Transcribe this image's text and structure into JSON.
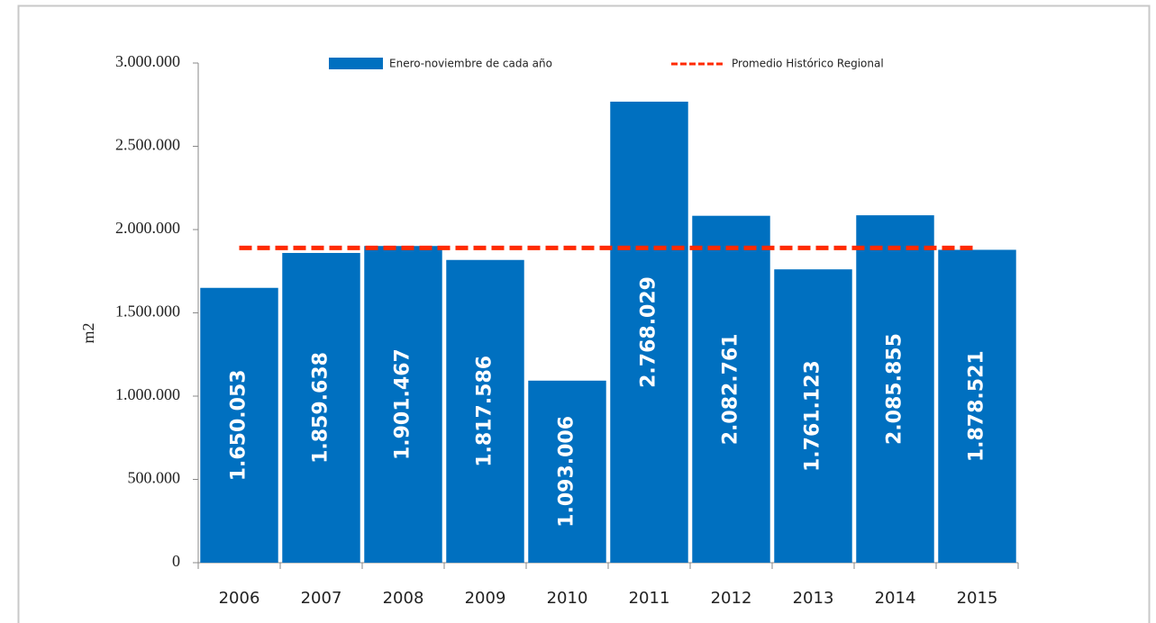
{
  "chart_data": {
    "type": "bar",
    "ylabel": "m2",
    "categories": [
      "2006",
      "2007",
      "2008",
      "2009",
      "2010",
      "2011",
      "2012",
      "2013",
      "2014",
      "2015"
    ],
    "series": [
      {
        "name": "Enero-noviembre de cada año",
        "color": "#0070c0",
        "values": [
          1650053,
          1859638,
          1901467,
          1817586,
          1093006,
          2768029,
          2082761,
          1761123,
          2085855,
          1878521
        ],
        "value_labels": [
          "1.650.053",
          "1.859.638",
          "1.901.467",
          "1.817.586",
          "1.093.006",
          "2.768.029",
          "2.082.761",
          "1.761.123",
          "2.085.855",
          "1.878.521"
        ]
      },
      {
        "name": "Promedio Histórico Regional",
        "color": "#ff2a00",
        "type": "line",
        "dashed": true,
        "values": [
          1890000,
          1890000,
          1890000,
          1890000,
          1890000,
          1890000,
          1890000,
          1890000,
          1890000,
          1890000
        ]
      }
    ],
    "ylim": [
      0,
      3000000
    ],
    "yticks": [
      {
        "value": 0,
        "label": "0"
      },
      {
        "value": 500000,
        "label": "500.000"
      },
      {
        "value": 1000000,
        "label": "1.000.000"
      },
      {
        "value": 1500000,
        "label": "1.500.000"
      },
      {
        "value": 2000000,
        "label": "2.000.000"
      },
      {
        "value": 2500000,
        "label": "2.500.000"
      },
      {
        "value": 3000000,
        "label": "3.000.000"
      }
    ]
  }
}
